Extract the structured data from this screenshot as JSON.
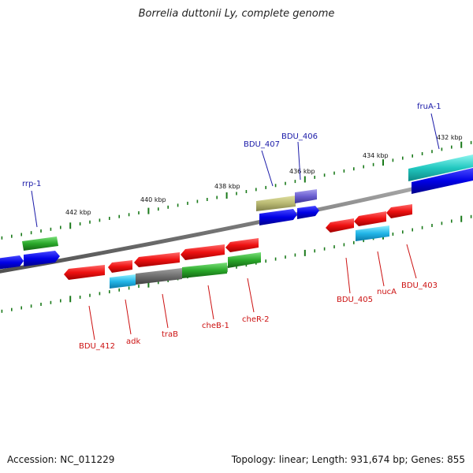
{
  "title": "Borrelia duttonii Ly, complete genome",
  "footer": {
    "accession": "Accession: NC_011229",
    "summary": "Topology: linear; Length: 931,674 bp; Genes: 855"
  },
  "colors": {
    "backbone": "#808080",
    "tick": "#1a7a1a",
    "forward_label": "#1a1aa8",
    "reverse_label": "#cc1111"
  },
  "scale_labels": [
    "442 kbp",
    "440 kbp",
    "438 kbp",
    "436 kbp",
    "434 kbp",
    "432 kbp"
  ],
  "forward_labels": [
    "rrp-1",
    "BDU_407",
    "BDU_406",
    "fruA-1"
  ],
  "reverse_labels": [
    "BDU_412",
    "adk",
    "traB",
    "cheB-1",
    "cheR-2",
    "BDU_405",
    "nucA",
    "BDU_403"
  ]
}
